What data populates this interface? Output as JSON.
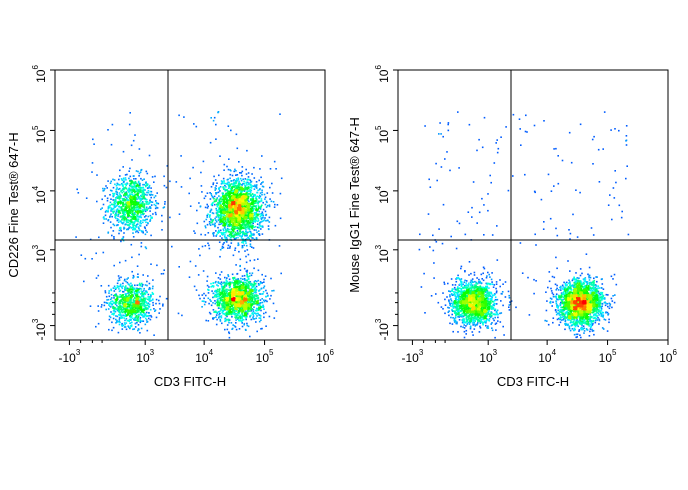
{
  "chart_data": [
    {
      "type": "scatter",
      "subtype": "flow-cytometry-density-dot-plot",
      "xlabel": "CD3 FITC-H",
      "ylabel": "CD226 Fine Test® 647-H",
      "x_scale": "biexponential",
      "y_scale": "biexponential",
      "x_ticks": [
        {
          "base": "-10",
          "exp": "3",
          "value": -1000
        },
        {
          "base": "10",
          "exp": "3",
          "value": 1000
        },
        {
          "base": "10",
          "exp": "4",
          "value": 10000
        },
        {
          "base": "10",
          "exp": "5",
          "value": 100000
        },
        {
          "base": "10",
          "exp": "6",
          "value": 1000000
        }
      ],
      "y_ticks": [
        {
          "base": "-10",
          "exp": "3",
          "value": -1000
        },
        {
          "base": "10",
          "exp": "3",
          "value": 1000
        },
        {
          "base": "10",
          "exp": "4",
          "value": 10000
        },
        {
          "base": "10",
          "exp": "5",
          "value": 100000
        },
        {
          "base": "10",
          "exp": "6",
          "value": 1000000
        }
      ],
      "quadrant_gate": {
        "x": 2500,
        "y": 1500
      },
      "populations": [
        {
          "x_center": 500,
          "y_center": 6000,
          "relative_density": 0.45
        },
        {
          "x_center": 500,
          "y_center": -300,
          "relative_density": 0.4
        },
        {
          "x_center": 35000,
          "y_center": 5000,
          "relative_density": 1.0
        },
        {
          "x_center": 35000,
          "y_center": -200,
          "relative_density": 0.7
        }
      ],
      "color_scale": [
        "#0000ff",
        "#00ffff",
        "#00ff00",
        "#ffff00",
        "#ff0000"
      ]
    },
    {
      "type": "scatter",
      "subtype": "flow-cytometry-density-dot-plot",
      "xlabel": "CD3 FITC-H",
      "ylabel": "Mouse IgG1 Fine Test® 647-H",
      "x_scale": "biexponential",
      "y_scale": "biexponential",
      "x_ticks": [
        {
          "base": "-10",
          "exp": "3",
          "value": -1000
        },
        {
          "base": "10",
          "exp": "3",
          "value": 1000
        },
        {
          "base": "10",
          "exp": "4",
          "value": 10000
        },
        {
          "base": "10",
          "exp": "5",
          "value": 100000
        },
        {
          "base": "10",
          "exp": "6",
          "value": 1000000
        }
      ],
      "y_ticks": [
        {
          "base": "-10",
          "exp": "3",
          "value": -1000
        },
        {
          "base": "10",
          "exp": "3",
          "value": 1000
        },
        {
          "base": "10",
          "exp": "4",
          "value": 10000
        },
        {
          "base": "10",
          "exp": "5",
          "value": 100000
        },
        {
          "base": "10",
          "exp": "6",
          "value": 1000000
        }
      ],
      "quadrant_gate": {
        "x": 2500,
        "y": 1500
      },
      "populations": [
        {
          "x_center": 500,
          "y_center": -300,
          "relative_density": 0.75
        },
        {
          "x_center": 35000,
          "y_center": -300,
          "relative_density": 1.0
        }
      ],
      "color_scale": [
        "#0000ff",
        "#00ffff",
        "#00ff00",
        "#ffff00",
        "#ff0000"
      ]
    }
  ]
}
